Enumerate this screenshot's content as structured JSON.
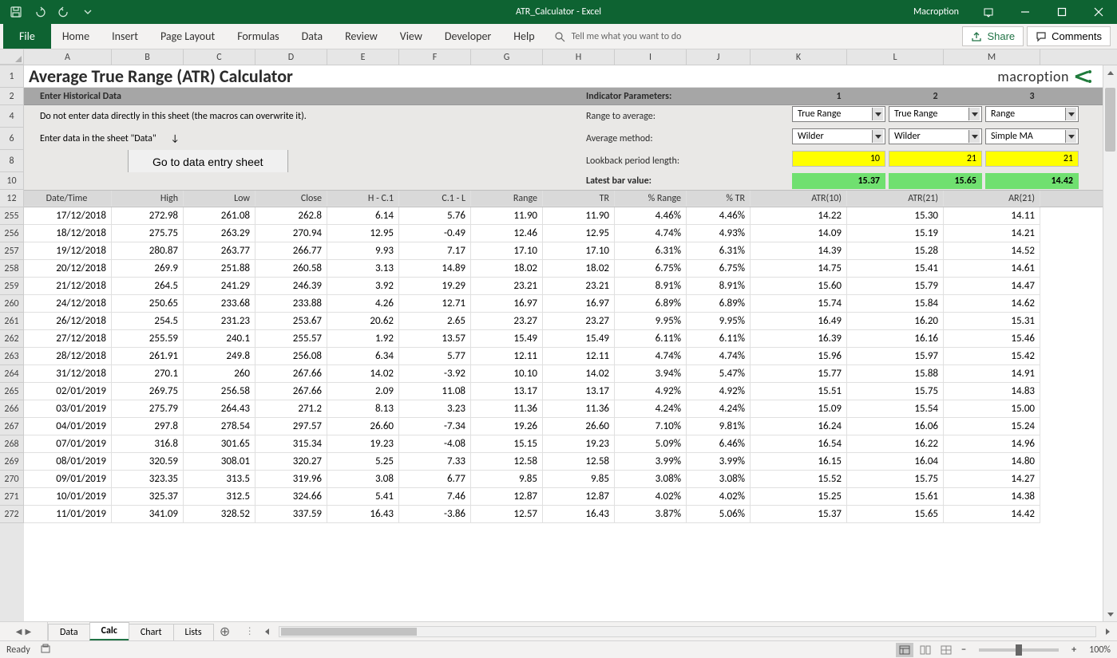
{
  "titlebar": {
    "title": "ATR_Calculator  -  Excel",
    "user": "Macroption"
  },
  "ribbon": {
    "tabs": [
      "File",
      "Home",
      "Insert",
      "Page Layout",
      "Formulas",
      "Data",
      "Review",
      "View",
      "Developer",
      "Help"
    ],
    "tellme": "Tell me what you want to do",
    "share": "Share",
    "comments": "Comments"
  },
  "columns": [
    "A",
    "B",
    "C",
    "D",
    "E",
    "F",
    "G",
    "H",
    "I",
    "J",
    "K",
    "L",
    "M"
  ],
  "row_numbers_top": [
    "1",
    "2",
    "4",
    "6",
    "8",
    "10",
    "12"
  ],
  "row_numbers_data": [
    "255",
    "256",
    "257",
    "258",
    "259",
    "260",
    "261",
    "262",
    "263",
    "264",
    "265",
    "266",
    "267",
    "268",
    "269",
    "270",
    "271",
    "272"
  ],
  "title_row": {
    "title": "Average True Range (ATR) Calculator",
    "logo_text": "macroption"
  },
  "section": {
    "left_label": "Enter Historical Data",
    "right_label": "Indicator Parameters:",
    "p1": "1",
    "p2": "2",
    "p3": "3"
  },
  "instructions": {
    "line1": "Do not enter data directly in this sheet (the macros can overwrite it).",
    "line2": "Enter data in the sheet \"Data\"",
    "button": "Go to data entry sheet"
  },
  "params": {
    "range_label": "Range to average:",
    "avg_label": "Average method:",
    "lookback_label": "Lookback period length:",
    "latest_label": "Latest bar value:",
    "dropdowns": {
      "range": [
        "True Range",
        "True Range",
        "Range"
      ],
      "avg": [
        "Wilder",
        "Wilder",
        "Simple MA"
      ]
    },
    "lookback": [
      "10",
      "21",
      "21"
    ],
    "latest": [
      "15.37",
      "15.65",
      "14.42"
    ]
  },
  "table": {
    "headers": [
      "Date/Time",
      "High",
      "Low",
      "Close",
      "H - C.1",
      "C.1 - L",
      "Range",
      "TR",
      "% Range",
      "% TR",
      "ATR(10)",
      "ATR(21)",
      "AR(21)"
    ],
    "rows": [
      [
        "17/12/2018",
        "272.98",
        "261.08",
        "262.8",
        "6.14",
        "5.76",
        "11.90",
        "11.90",
        "4.46%",
        "4.46%",
        "14.22",
        "15.30",
        "14.11"
      ],
      [
        "18/12/2018",
        "275.75",
        "263.29",
        "270.94",
        "12.95",
        "-0.49",
        "12.46",
        "12.95",
        "4.74%",
        "4.93%",
        "14.09",
        "15.19",
        "14.21"
      ],
      [
        "19/12/2018",
        "280.87",
        "263.77",
        "266.77",
        "9.93",
        "7.17",
        "17.10",
        "17.10",
        "6.31%",
        "6.31%",
        "14.39",
        "15.28",
        "14.52"
      ],
      [
        "20/12/2018",
        "269.9",
        "251.88",
        "260.58",
        "3.13",
        "14.89",
        "18.02",
        "18.02",
        "6.75%",
        "6.75%",
        "14.75",
        "15.41",
        "14.61"
      ],
      [
        "21/12/2018",
        "264.5",
        "241.29",
        "246.39",
        "3.92",
        "19.29",
        "23.21",
        "23.21",
        "8.91%",
        "8.91%",
        "15.60",
        "15.79",
        "14.47"
      ],
      [
        "24/12/2018",
        "250.65",
        "233.68",
        "233.88",
        "4.26",
        "12.71",
        "16.97",
        "16.97",
        "6.89%",
        "6.89%",
        "15.74",
        "15.84",
        "14.62"
      ],
      [
        "26/12/2018",
        "254.5",
        "231.23",
        "253.67",
        "20.62",
        "2.65",
        "23.27",
        "23.27",
        "9.95%",
        "9.95%",
        "16.49",
        "16.20",
        "15.31"
      ],
      [
        "27/12/2018",
        "255.59",
        "240.1",
        "255.57",
        "1.92",
        "13.57",
        "15.49",
        "15.49",
        "6.11%",
        "6.11%",
        "16.39",
        "16.16",
        "15.46"
      ],
      [
        "28/12/2018",
        "261.91",
        "249.8",
        "256.08",
        "6.34",
        "5.77",
        "12.11",
        "12.11",
        "4.74%",
        "4.74%",
        "15.96",
        "15.97",
        "15.42"
      ],
      [
        "31/12/2018",
        "270.1",
        "260",
        "267.66",
        "14.02",
        "-3.92",
        "10.10",
        "14.02",
        "3.94%",
        "5.47%",
        "15.77",
        "15.88",
        "14.91"
      ],
      [
        "02/01/2019",
        "269.75",
        "256.58",
        "267.66",
        "2.09",
        "11.08",
        "13.17",
        "13.17",
        "4.92%",
        "4.92%",
        "15.51",
        "15.75",
        "14.83"
      ],
      [
        "03/01/2019",
        "275.79",
        "264.43",
        "271.2",
        "8.13",
        "3.23",
        "11.36",
        "11.36",
        "4.24%",
        "4.24%",
        "15.09",
        "15.54",
        "15.00"
      ],
      [
        "04/01/2019",
        "297.8",
        "278.54",
        "297.57",
        "26.60",
        "-7.34",
        "19.26",
        "26.60",
        "7.10%",
        "9.81%",
        "16.24",
        "16.06",
        "15.24"
      ],
      [
        "07/01/2019",
        "316.8",
        "301.65",
        "315.34",
        "19.23",
        "-4.08",
        "15.15",
        "19.23",
        "5.09%",
        "6.46%",
        "16.54",
        "16.22",
        "14.96"
      ],
      [
        "08/01/2019",
        "320.59",
        "308.01",
        "320.27",
        "5.25",
        "7.33",
        "12.58",
        "12.58",
        "3.99%",
        "3.99%",
        "16.15",
        "16.04",
        "14.80"
      ],
      [
        "09/01/2019",
        "323.35",
        "313.5",
        "319.96",
        "3.08",
        "6.77",
        "9.85",
        "9.85",
        "3.08%",
        "3.08%",
        "15.52",
        "15.75",
        "14.27"
      ],
      [
        "10/01/2019",
        "325.37",
        "312.5",
        "324.66",
        "5.41",
        "7.46",
        "12.87",
        "12.87",
        "4.02%",
        "4.02%",
        "15.25",
        "15.61",
        "14.38"
      ],
      [
        "11/01/2019",
        "341.09",
        "328.52",
        "337.59",
        "16.43",
        "-3.86",
        "12.57",
        "16.43",
        "3.87%",
        "5.06%",
        "15.37",
        "15.65",
        "14.42"
      ]
    ]
  },
  "sheets": [
    "Data",
    "Calc",
    "Chart",
    "Lists"
  ],
  "active_sheet": "Calc",
  "status": {
    "ready": "Ready",
    "zoom": "100%"
  }
}
